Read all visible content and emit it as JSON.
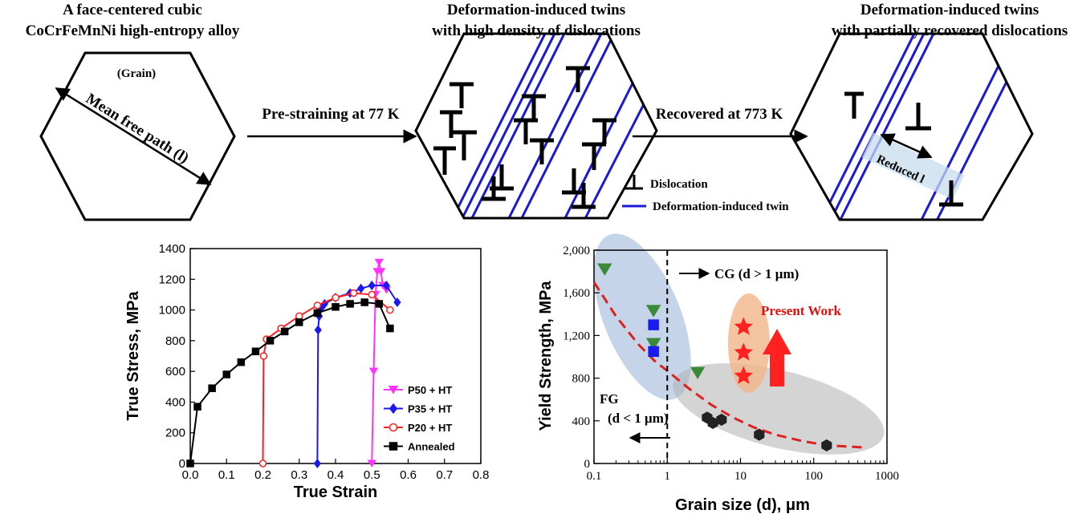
{
  "schematic": {
    "panel1": {
      "title_line1": "A face-centered cubic",
      "title_line2": "CoCrFeMnNi high-entropy alloy",
      "grain_label": "(Grain)",
      "mfp_label": "Mean free path (l)"
    },
    "panel2": {
      "title_line1": "Deformation-induced twins",
      "title_line2": "with high density of dislocations"
    },
    "panel3": {
      "title_line1": "Deformation-induced twins",
      "title_line2": "with partially recovered dislocations",
      "reduced_label": "Reduced l"
    },
    "arrow1_label": "Pre-straining at 77 K",
    "arrow2_label": "Recovered at 773 K",
    "legend": {
      "dislocation": "Dislocation",
      "twin": "Deformation-induced twin"
    },
    "colors": {
      "twin": "#1a1ad6",
      "dislocation": "#000000"
    }
  },
  "chart_data": [
    {
      "type": "line",
      "xlabel": "True Strain",
      "ylabel": "True Stress, MPa",
      "xlim": [
        0,
        0.8
      ],
      "ylim": [
        0,
        1400
      ],
      "xticks": [
        "0.0",
        "0.1",
        "0.2",
        "0.3",
        "0.4",
        "0.5",
        "0.6",
        "0.7",
        "0.8"
      ],
      "yticks": [
        "0",
        "200",
        "400",
        "600",
        "800",
        "1000",
        "1200",
        "1400"
      ],
      "legend_position": "bottom-right",
      "series": [
        {
          "name": "P50 + HT",
          "color": "#ff33ff",
          "marker": "triangle-down",
          "x": [
            0.5,
            0.505,
            0.51,
            0.515,
            0.52,
            0.525,
            0.53,
            0.54
          ],
          "y": [
            0,
            600,
            1100,
            1250,
            1310,
            1250,
            1160,
            1130
          ]
        },
        {
          "name": "P35 + HT",
          "color": "#1a1af0",
          "marker": "diamond",
          "x": [
            0.35,
            0.352,
            0.355,
            0.36,
            0.37,
            0.4,
            0.44,
            0.47,
            0.5,
            0.54,
            0.57
          ],
          "y": [
            0,
            870,
            960,
            1010,
            1040,
            1080,
            1110,
            1140,
            1160,
            1160,
            1050
          ]
        },
        {
          "name": "P20 + HT",
          "color": "#ff2020",
          "marker": "circle",
          "x": [
            0.2,
            0.202,
            0.21,
            0.25,
            0.3,
            0.35,
            0.4,
            0.45,
            0.5,
            0.55
          ],
          "y": [
            0,
            700,
            810,
            880,
            960,
            1030,
            1080,
            1110,
            1100,
            1000
          ]
        },
        {
          "name": "Annealed",
          "color": "#000000",
          "marker": "square",
          "x": [
            0.0,
            0.02,
            0.06,
            0.1,
            0.14,
            0.18,
            0.22,
            0.26,
            0.3,
            0.35,
            0.4,
            0.44,
            0.48,
            0.52,
            0.55
          ],
          "y": [
            0,
            370,
            490,
            580,
            660,
            730,
            800,
            860,
            920,
            980,
            1020,
            1040,
            1050,
            1040,
            880
          ]
        }
      ]
    },
    {
      "type": "scatter",
      "xlabel": "Grain size (d), μm",
      "ylabel": "Yield Strength, MPa",
      "xscale": "log",
      "xlim": [
        0.1,
        1000
      ],
      "ylim": [
        0,
        2000
      ],
      "xticks": [
        "0.1",
        "1",
        "10",
        "100",
        "1000"
      ],
      "yticks": [
        "0",
        "400",
        "800",
        "1,200",
        "1,600",
        "2,000"
      ],
      "annotations": {
        "cg": "CG (d > 1 μm)",
        "fg_line1": "FG",
        "fg_line2": "(d < 1 μm)",
        "present_work": "Present Work"
      },
      "series": [
        {
          "name": "",
          "color": "#3a8a3a",
          "marker": "triangle-down",
          "x": [
            0.14,
            0.65,
            0.65,
            2.6
          ],
          "y": [
            1820,
            1430,
            1120,
            850
          ]
        },
        {
          "name": "",
          "color": "#1a1af0",
          "marker": "square",
          "x": [
            0.65,
            0.65
          ],
          "y": [
            1300,
            1050
          ]
        },
        {
          "name": "",
          "color": "#222222",
          "marker": "hexagon",
          "x": [
            3.5,
            4.2,
            5.5,
            18,
            150
          ],
          "y": [
            430,
            380,
            410,
            270,
            170
          ]
        },
        {
          "name": "Present Work",
          "color": "#ff2020",
          "marker": "star",
          "x": [
            11,
            11,
            11
          ],
          "y": [
            1280,
            1040,
            820
          ]
        }
      ],
      "fit_curve": {
        "color": "#dd2020",
        "x": [
          0.1,
          0.2,
          0.4,
          0.7,
          1,
          2,
          4,
          8,
          15,
          30,
          70,
          150,
          500
        ],
        "y": [
          1700,
          1380,
          1120,
          950,
          870,
          700,
          550,
          430,
          340,
          270,
          210,
          170,
          150
        ]
      },
      "divider_x": 1
    }
  ]
}
